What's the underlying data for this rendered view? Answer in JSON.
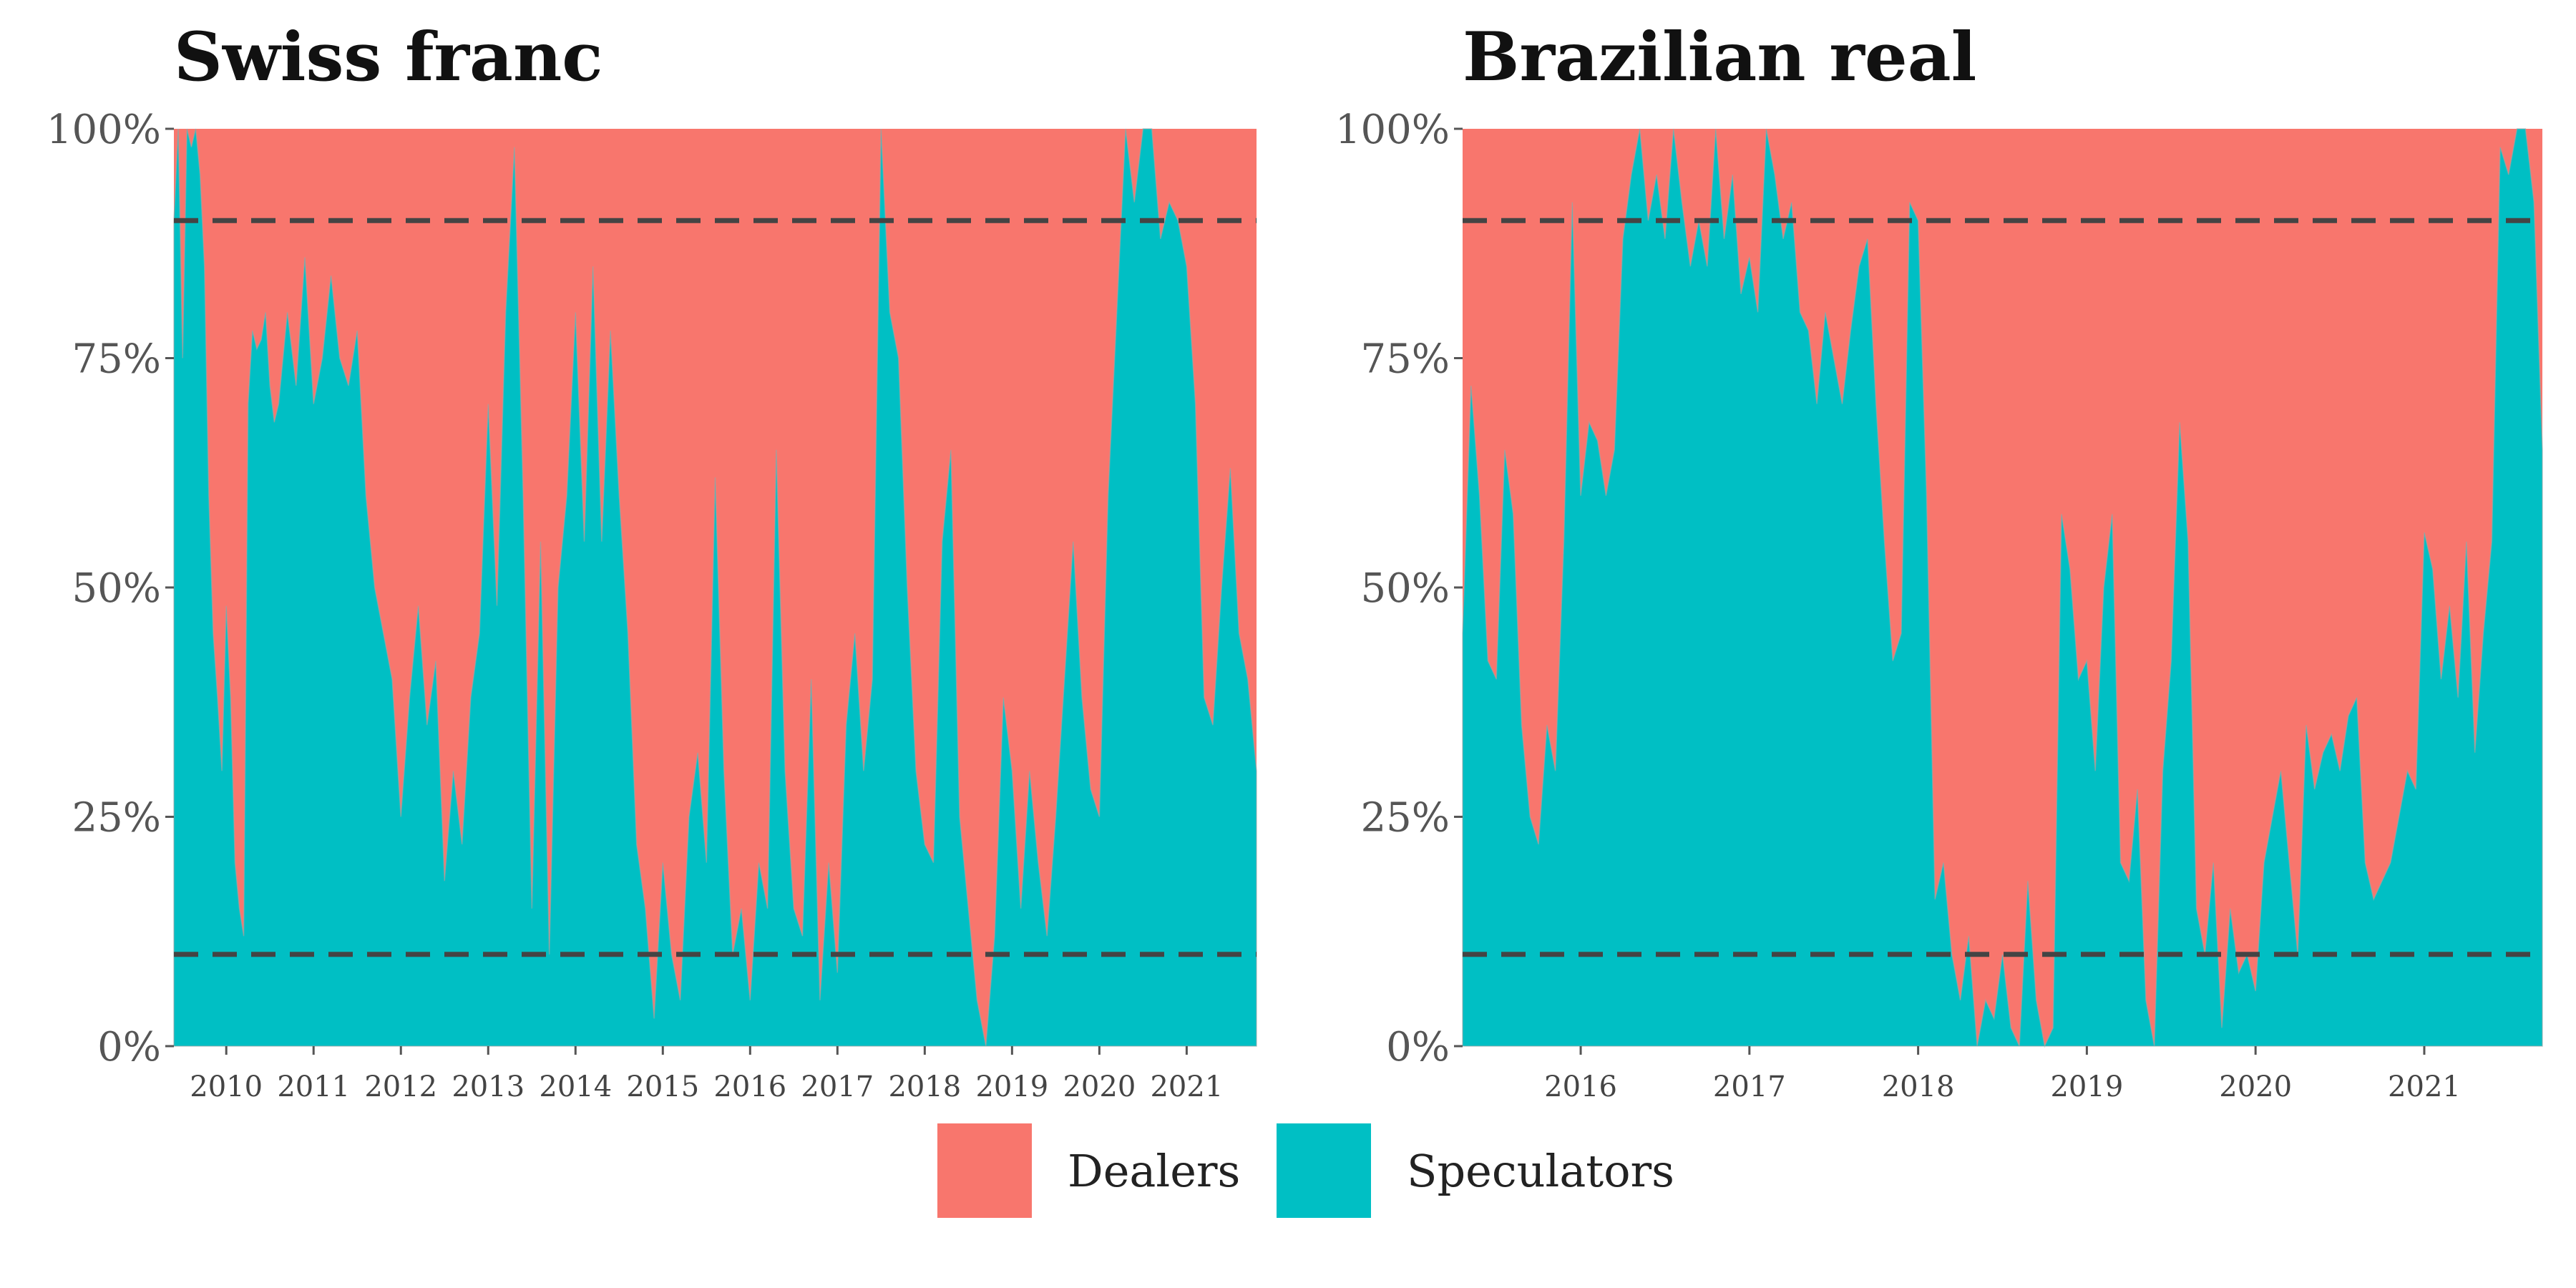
{
  "legend": [
    {
      "label": "Dealers",
      "color": "#F8766D"
    },
    {
      "label": "Speculators",
      "color": "#00BFC4"
    }
  ],
  "chart_data": [
    {
      "type": "area",
      "title": "Swiss franc",
      "xlabel": "",
      "ylabel": "",
      "ylim": [
        0,
        100
      ],
      "y_unit": "%",
      "yticks": [
        "0%",
        "25%",
        "50%",
        "75%",
        "100%"
      ],
      "xlim": [
        2009.4,
        2021.8
      ],
      "xticks": [
        "2010",
        "2011",
        "2012",
        "2013",
        "2014",
        "2015",
        "2016",
        "2017",
        "2018",
        "2019",
        "2020",
        "2021"
      ],
      "reference_lines": [
        10,
        90
      ],
      "stack": [
        "Speculators",
        "Dealers"
      ],
      "series": [
        {
          "name": "Speculators",
          "x": [
            2009.4,
            2009.45,
            2009.5,
            2009.55,
            2009.6,
            2009.65,
            2009.7,
            2009.75,
            2009.8,
            2009.85,
            2009.9,
            2009.95,
            2010.0,
            2010.05,
            2010.1,
            2010.15,
            2010.2,
            2010.25,
            2010.3,
            2010.35,
            2010.4,
            2010.45,
            2010.5,
            2010.55,
            2010.6,
            2010.7,
            2010.8,
            2010.9,
            2011.0,
            2011.1,
            2011.2,
            2011.3,
            2011.4,
            2011.5,
            2011.6,
            2011.7,
            2011.8,
            2011.9,
            2012.0,
            2012.1,
            2012.2,
            2012.3,
            2012.4,
            2012.5,
            2012.6,
            2012.7,
            2012.8,
            2012.9,
            2013.0,
            2013.1,
            2013.2,
            2013.3,
            2013.4,
            2013.5,
            2013.6,
            2013.7,
            2013.8,
            2013.9,
            2014.0,
            2014.1,
            2014.2,
            2014.3,
            2014.4,
            2014.5,
            2014.6,
            2014.7,
            2014.8,
            2014.9,
            2015.0,
            2015.1,
            2015.2,
            2015.3,
            2015.4,
            2015.5,
            2015.6,
            2015.7,
            2015.8,
            2015.9,
            2016.0,
            2016.1,
            2016.2,
            2016.3,
            2016.4,
            2016.5,
            2016.6,
            2016.7,
            2016.8,
            2016.9,
            2017.0,
            2017.1,
            2017.2,
            2017.3,
            2017.4,
            2017.5,
            2017.6,
            2017.7,
            2017.8,
            2017.9,
            2018.0,
            2018.1,
            2018.2,
            2018.3,
            2018.4,
            2018.5,
            2018.6,
            2018.7,
            2018.8,
            2018.9,
            2019.0,
            2019.1,
            2019.2,
            2019.3,
            2019.4,
            2019.5,
            2019.6,
            2019.7,
            2019.8,
            2019.9,
            2020.0,
            2020.1,
            2020.2,
            2020.3,
            2020.4,
            2020.5,
            2020.6,
            2020.7,
            2020.8,
            2020.9,
            2021.0,
            2021.1,
            2021.2,
            2021.3,
            2021.4,
            2021.5,
            2021.6,
            2021.7,
            2021.8
          ],
          "values": [
            90,
            100,
            75,
            100,
            98,
            100,
            95,
            85,
            60,
            45,
            38,
            30,
            48,
            38,
            20,
            15,
            12,
            70,
            78,
            76,
            77,
            80,
            72,
            68,
            70,
            80,
            72,
            86,
            70,
            75,
            84,
            75,
            72,
            78,
            60,
            50,
            45,
            40,
            25,
            38,
            48,
            35,
            42,
            18,
            30,
            22,
            38,
            45,
            70,
            48,
            80,
            98,
            60,
            15,
            55,
            10,
            50,
            60,
            80,
            55,
            85,
            55,
            78,
            60,
            45,
            22,
            15,
            3,
            20,
            10,
            5,
            25,
            32,
            20,
            62,
            30,
            10,
            15,
            5,
            20,
            15,
            65,
            30,
            15,
            12,
            40,
            5,
            20,
            8,
            35,
            45,
            30,
            40,
            100,
            80,
            75,
            50,
            30,
            22,
            20,
            55,
            65,
            25,
            15,
            5,
            0,
            12,
            38,
            30,
            15,
            30,
            20,
            12,
            25,
            40,
            55,
            38,
            28,
            25,
            60,
            80,
            100,
            92,
            100,
            100,
            88,
            92,
            90,
            85,
            70,
            38,
            35,
            50,
            63,
            45,
            40,
            30
          ]
        },
        {
          "name": "Dealers",
          "values": "remainder to 100%"
        }
      ]
    },
    {
      "type": "area",
      "title": "Brazilian real",
      "xlabel": "",
      "ylabel": "",
      "ylim": [
        0,
        100
      ],
      "y_unit": "%",
      "yticks": [
        "0%",
        "25%",
        "50%",
        "75%",
        "100%"
      ],
      "xlim": [
        2015.3,
        2021.7
      ],
      "xticks": [
        "2016",
        "2017",
        "2018",
        "2019",
        "2020",
        "2021"
      ],
      "reference_lines": [
        10,
        90
      ],
      "stack": [
        "Speculators",
        "Dealers"
      ],
      "series": [
        {
          "name": "Speculators",
          "x": [
            2015.3,
            2015.35,
            2015.4,
            2015.45,
            2015.5,
            2015.55,
            2015.6,
            2015.65,
            2015.7,
            2015.75,
            2015.8,
            2015.85,
            2015.9,
            2015.95,
            2016.0,
            2016.05,
            2016.1,
            2016.15,
            2016.2,
            2016.25,
            2016.3,
            2016.35,
            2016.4,
            2016.45,
            2016.5,
            2016.55,
            2016.6,
            2016.65,
            2016.7,
            2016.75,
            2016.8,
            2016.85,
            2016.9,
            2016.95,
            2017.0,
            2017.05,
            2017.1,
            2017.15,
            2017.2,
            2017.25,
            2017.3,
            2017.35,
            2017.4,
            2017.45,
            2017.5,
            2017.55,
            2017.6,
            2017.65,
            2017.7,
            2017.75,
            2017.8,
            2017.85,
            2017.9,
            2017.95,
            2018.0,
            2018.05,
            2018.1,
            2018.15,
            2018.2,
            2018.25,
            2018.3,
            2018.35,
            2018.4,
            2018.45,
            2018.5,
            2018.55,
            2018.6,
            2018.65,
            2018.7,
            2018.75,
            2018.8,
            2018.85,
            2018.9,
            2018.95,
            2019.0,
            2019.05,
            2019.1,
            2019.15,
            2019.2,
            2019.25,
            2019.3,
            2019.35,
            2019.4,
            2019.45,
            2019.5,
            2019.55,
            2019.6,
            2019.65,
            2019.7,
            2019.75,
            2019.8,
            2019.85,
            2019.9,
            2019.95,
            2020.0,
            2020.05,
            2020.1,
            2020.15,
            2020.2,
            2020.25,
            2020.3,
            2020.35,
            2020.4,
            2020.45,
            2020.5,
            2020.55,
            2020.6,
            2020.65,
            2020.7,
            2020.75,
            2020.8,
            2020.85,
            2020.9,
            2020.95,
            2021.0,
            2021.05,
            2021.1,
            2021.15,
            2021.2,
            2021.25,
            2021.3,
            2021.35,
            2021.4,
            2021.45,
            2021.5,
            2021.55,
            2021.6,
            2021.65,
            2021.7
          ],
          "values": [
            45,
            72,
            60,
            42,
            40,
            65,
            58,
            35,
            25,
            22,
            35,
            30,
            55,
            92,
            60,
            68,
            66,
            60,
            65,
            88,
            95,
            100,
            90,
            95,
            88,
            100,
            92,
            85,
            90,
            85,
            100,
            88,
            95,
            82,
            86,
            80,
            100,
            95,
            88,
            92,
            80,
            78,
            70,
            80,
            75,
            70,
            78,
            85,
            88,
            70,
            55,
            42,
            45,
            92,
            90,
            60,
            16,
            20,
            10,
            5,
            12,
            0,
            5,
            3,
            10,
            2,
            0,
            18,
            5,
            0,
            2,
            58,
            52,
            40,
            42,
            30,
            50,
            58,
            20,
            18,
            28,
            5,
            0,
            30,
            42,
            68,
            55,
            15,
            10,
            20,
            2,
            15,
            8,
            10,
            6,
            20,
            25,
            30,
            20,
            10,
            35,
            28,
            32,
            34,
            30,
            36,
            38,
            20,
            16,
            18,
            20,
            25,
            30,
            28,
            56,
            52,
            40,
            48,
            38,
            55,
            32,
            45,
            55,
            98,
            95,
            100,
            100,
            92,
            65
          ]
        },
        {
          "name": "Dealers",
          "values": "remainder to 100%"
        }
      ]
    }
  ]
}
